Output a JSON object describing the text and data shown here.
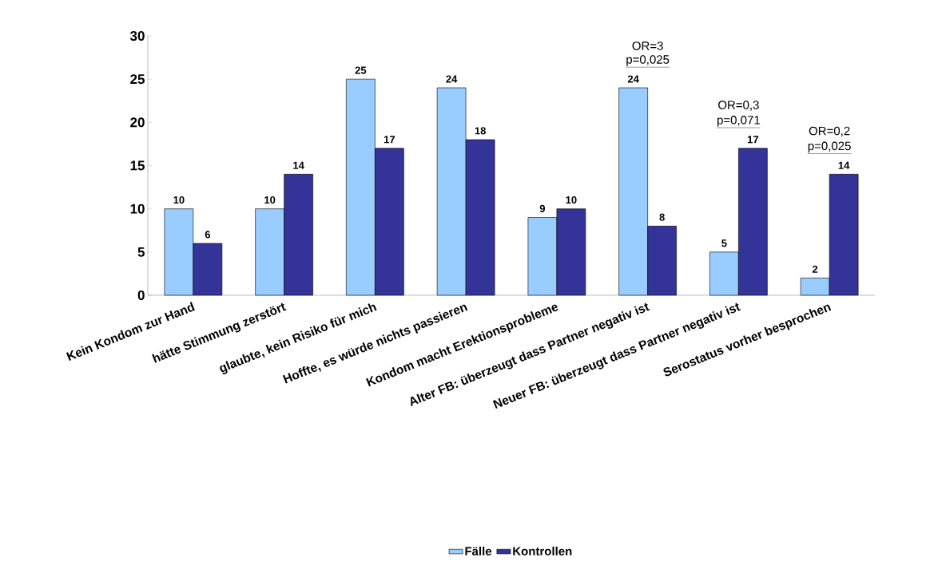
{
  "chart_data": {
    "type": "bar",
    "categories": [
      "Kein Kondom zur Hand",
      "hätte Stimmung zerstört",
      "glaubte, kein Risiko für mich",
      "Hoffte, es würde nichts passieren",
      "Kondom macht Erektionsprobleme",
      "Alter FB: überzeugt dass Partner negativ ist",
      "Neuer FB: überzeugt dass Partner negativ ist",
      "Serostatus vorher besprochen"
    ],
    "series": [
      {
        "name": "Fälle",
        "color": "#99ccff",
        "values": [
          10,
          10,
          25,
          24,
          9,
          24,
          5,
          2
        ]
      },
      {
        "name": "Kontrollen",
        "color": "#333399",
        "values": [
          6,
          14,
          17,
          18,
          10,
          8,
          17,
          14
        ]
      }
    ],
    "ylim": [
      0,
      30
    ],
    "yticks": [
      0,
      5,
      10,
      15,
      20,
      25,
      30
    ],
    "data_labels": true,
    "legend": "bottom",
    "grid": false,
    "annotations": [
      "OR=3",
      "p=0,025",
      "OR=0,3",
      "p=0,071",
      "OR=0,2",
      "p=0,025"
    ]
  }
}
